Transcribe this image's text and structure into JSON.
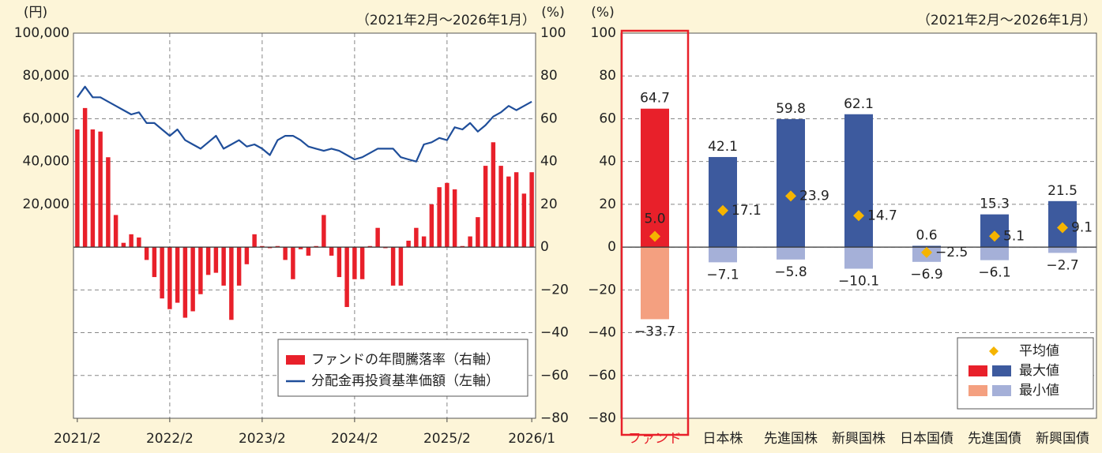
{
  "chart_data": [
    {
      "type": "combo",
      "y_label": "(円)",
      "y2_label": "(%)",
      "subtitle": "（2021年2月～2026年1月）",
      "categories": [
        "2021/2",
        null,
        null,
        null,
        null,
        null,
        null,
        null,
        null,
        null,
        null,
        null,
        "2022/2",
        null,
        null,
        null,
        null,
        null,
        null,
        null,
        null,
        null,
        null,
        null,
        "2023/2",
        null,
        null,
        null,
        null,
        null,
        null,
        null,
        null,
        null,
        null,
        null,
        "2024/2",
        null,
        null,
        null,
        null,
        null,
        null,
        null,
        null,
        null,
        null,
        null,
        "2025/2",
        null,
        null,
        null,
        null,
        null,
        null,
        null,
        null,
        null,
        null,
        "2026/1"
      ],
      "series": [
        {
          "name": "ファンドの年間騰落率（右軸）",
          "type": "bar",
          "axis": "y2",
          "color": "#e8202a",
          "values": [
            55,
            65,
            55,
            54,
            42,
            15,
            2,
            6,
            4.5,
            -6,
            -14,
            -24,
            -29,
            -26,
            -33,
            -30,
            -22,
            -13,
            -12,
            -18,
            -34,
            -18,
            -8,
            6,
            0.5,
            -0.5,
            0.5,
            -6,
            -15,
            -1,
            -4,
            0.5,
            15,
            -4,
            -14,
            -28,
            -15,
            -15,
            0.5,
            9,
            -0.5,
            -18,
            -18,
            3,
            9,
            5,
            20,
            28,
            30,
            27,
            0.5,
            5,
            14,
            38,
            49,
            38,
            33,
            35,
            25,
            35
          ]
        },
        {
          "name": "分配金再投資基準価額（左軸）",
          "type": "line",
          "axis": "y",
          "color": "#1f4e9a",
          "values": [
            70000,
            75000,
            70000,
            70000,
            68000,
            66000,
            64000,
            62000,
            63000,
            58000,
            58000,
            55000,
            52000,
            55000,
            50000,
            48000,
            46000,
            49000,
            52000,
            46000,
            48000,
            50000,
            47000,
            48000,
            46000,
            43000,
            50000,
            52000,
            52000,
            50000,
            47000,
            46000,
            45000,
            46000,
            45000,
            43000,
            41000,
            42000,
            44000,
            46000,
            46000,
            46000,
            42000,
            41000,
            40000,
            48000,
            49000,
            51000,
            50000,
            56000,
            55000,
            58000,
            54000,
            57000,
            61000,
            63000,
            66000,
            64000,
            66000,
            68000
          ]
        }
      ],
      "ylim": [
        -80000,
        100000
      ],
      "yticks": [
        {
          "value": 20000,
          "label": "20,000"
        },
        {
          "value": 40000,
          "label": "40,000"
        },
        {
          "value": 60000,
          "label": "60,000"
        },
        {
          "value": 80000,
          "label": "80,000"
        },
        {
          "value": 100000,
          "label": "100,000"
        }
      ],
      "y2lim": [
        -80,
        100
      ],
      "y2ticks": [
        {
          "value": -80,
          "label": "−80"
        },
        {
          "value": -60,
          "label": "−60"
        },
        {
          "value": -40,
          "label": "−40"
        },
        {
          "value": -20,
          "label": "−20"
        },
        0,
        20,
        40,
        60,
        80,
        100
      ],
      "grid": true,
      "legend": "lower right"
    },
    {
      "type": "range_bar",
      "y_label": "(%)",
      "subtitle": "（2021年2月～2026年1月）",
      "categories": [
        "ファンド",
        "日本株",
        "先進国株",
        "新興国株",
        "日本国債",
        "先進国債",
        "新興国債"
      ],
      "series": [
        {
          "name": "平均値",
          "marker": "diamond",
          "color": "#f5b400",
          "values": [
            5.0,
            17.1,
            23.9,
            14.7,
            -2.5,
            5.1,
            9.1
          ],
          "value_labels": [
            "5.0",
            "17.1",
            "23.9",
            "14.7",
            "−2.5",
            "5.1",
            "9.1"
          ]
        },
        {
          "name": "最大値",
          "colors": [
            "#e8202a",
            "#3d5a9e",
            "#3d5a9e",
            "#3d5a9e",
            "#3d5a9e",
            "#3d5a9e",
            "#3d5a9e"
          ],
          "values": [
            64.7,
            42.1,
            59.8,
            62.1,
            0.6,
            15.3,
            21.5
          ]
        },
        {
          "name": "最小値",
          "colors": [
            "#f4a080",
            "#a5b0d8",
            "#a5b0d8",
            "#a5b0d8",
            "#a5b0d8",
            "#a5b0d8",
            "#a5b0d8"
          ],
          "values": [
            -33.7,
            -7.1,
            -5.8,
            -10.1,
            -6.9,
            -6.1,
            -2.7
          ],
          "value_labels": [
            "−33.7",
            "−7.1",
            "−5.8",
            "−10.1",
            "−6.9",
            "−6.1",
            "−2.7"
          ]
        }
      ],
      "ylim": [
        -80,
        100
      ],
      "yticks": [
        {
          "value": -80,
          "label": "−80"
        },
        {
          "value": -60,
          "label": "−60"
        },
        {
          "value": -40,
          "label": "−40"
        },
        {
          "value": -20,
          "label": "−20"
        },
        0,
        20,
        40,
        60,
        80,
        100
      ],
      "grid": true,
      "legend": "lower right",
      "highlight": 0
    }
  ]
}
